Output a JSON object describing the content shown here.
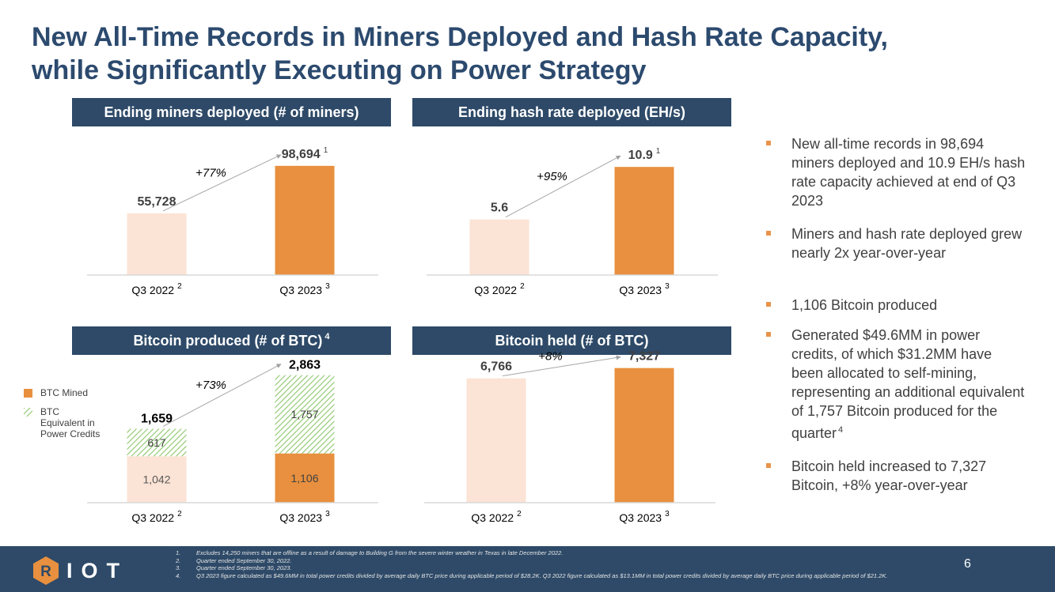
{
  "title": {
    "line1": "New All-Time Records in Miners Deployed and Hash Rate Capacity,",
    "line2": "while Significantly Executing on Power Strategy"
  },
  "colors": {
    "accent": "#E8903F",
    "light": "#FBE3D5",
    "hatch": "#8CC66B",
    "header": "#2E4A68",
    "title": "#2C4A6E"
  },
  "panels": [
    {
      "header": "Ending miners deployed (# of miners)",
      "sup": ""
    },
    {
      "header": "Ending hash rate deployed (EH/s)",
      "sup": ""
    },
    {
      "header": "Bitcoin produced (# of BTC)",
      "sup": "4"
    },
    {
      "header": "Bitcoin held (# of BTC)",
      "sup": ""
    }
  ],
  "chart_data": [
    {
      "type": "bar",
      "title": "Ending miners deployed (# of miners)",
      "categories": [
        "Q3 2022",
        "Q3 2023"
      ],
      "category_sups": [
        "2",
        "3"
      ],
      "values": [
        55728,
        98694
      ],
      "labels": [
        "55,728",
        "98,694"
      ],
      "value_sups": [
        "",
        "1"
      ],
      "change": "+77%",
      "ylim": [
        0,
        130000
      ]
    },
    {
      "type": "bar",
      "title": "Ending hash rate deployed (EH/s)",
      "categories": [
        "Q3 2022",
        "Q3 2023"
      ],
      "category_sups": [
        "2",
        "3"
      ],
      "values": [
        5.6,
        10.9
      ],
      "labels": [
        "5.6",
        "10.9"
      ],
      "value_sups": [
        "",
        "1"
      ],
      "change": "+95%",
      "ylim": [
        0,
        14.5
      ]
    },
    {
      "type": "bar",
      "stacked": true,
      "title": "Bitcoin produced (# of BTC)",
      "categories": [
        "Q3 2022",
        "Q3 2023"
      ],
      "category_sups": [
        "2",
        "3"
      ],
      "series": [
        {
          "name": "BTC Mined",
          "values": [
            1042,
            1106
          ],
          "labels": [
            "1,042",
            "1,106"
          ]
        },
        {
          "name": "BTC Equivalent in Power Credits",
          "values": [
            617,
            1757
          ],
          "labels": [
            "617",
            "1,757"
          ]
        }
      ],
      "totals": [
        1659,
        2863
      ],
      "total_labels": [
        "1,659",
        "2,863"
      ],
      "change": "+73%",
      "ylim": [
        0,
        3300
      ]
    },
    {
      "type": "bar",
      "title": "Bitcoin held (# of BTC)",
      "categories": [
        "Q3 2022",
        "Q3 2023"
      ],
      "category_sups": [
        "2",
        "3"
      ],
      "values": [
        6766,
        7327
      ],
      "labels": [
        "6,766",
        "7,327"
      ],
      "value_sups": [
        "",
        ""
      ],
      "change": "+8%",
      "ylim": [
        0,
        8000
      ]
    }
  ],
  "legend": {
    "mined": "BTC Mined",
    "credits_line1": "BTC",
    "credits_line2": "Equivalent in",
    "credits_line3": "Power Credits"
  },
  "bullets": [
    {
      "text": "New all-time records in 98,694 miners deployed and 10.9 EH/s hash rate capacity achieved at end of Q3 2023",
      "sup": ""
    },
    {
      "text": "Miners and hash rate deployed grew nearly 2x year-over-year",
      "sup": ""
    },
    {
      "text": "1,106 Bitcoin produced",
      "sup": ""
    },
    {
      "text": "Generated $49.6MM in power credits, of which $31.2MM have been allocated to self-mining, representing an additional equivalent of 1,757 Bitcoin produced for the quarter",
      "sup": "4"
    },
    {
      "text": "Bitcoin held increased to 7,327 Bitcoin, +8% year-over-year",
      "sup": ""
    }
  ],
  "footer": {
    "logo_icon_letter": "R",
    "logo_text": "IOT",
    "page_number": "6",
    "footnotes": [
      {
        "num": "1.",
        "text": "Excludes 14,250 miners that are offline as a result of damage to Building G from the severe winter weather in Texas in late December 2022."
      },
      {
        "num": "2.",
        "text": "Quarter ended September 30, 2022."
      },
      {
        "num": "3.",
        "text": "Quarter ended September 30, 2023."
      },
      {
        "num": "4.",
        "text": "Q3 2023 figure calculated as $49.6MM in total power credits divided by average daily BTC price during applicable period of $28.2K. Q3 2022 figure calculated as $13.1MM in total power credits divided by average daily BTC price during applicable period of $21.2K."
      }
    ]
  }
}
